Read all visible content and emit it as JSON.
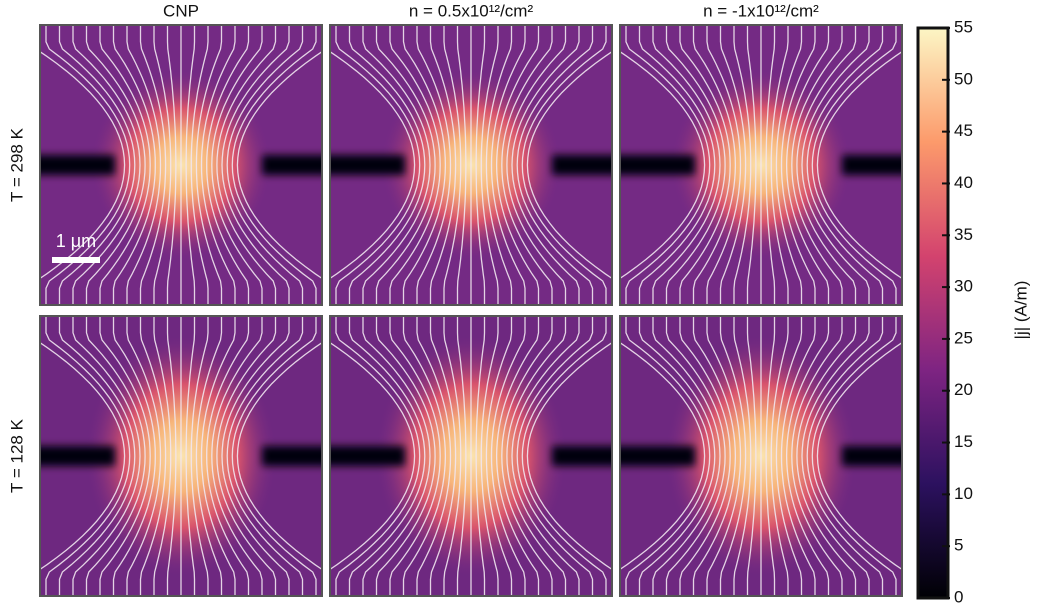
{
  "chart_data": {
    "type": "heatmap",
    "columns": [
      "CNP",
      "n = 0.5x10¹²/cm²",
      "n = -1x10¹²/cm²"
    ],
    "rows": [
      "T = 298 K",
      "T = 128 K"
    ],
    "scale_bar": "1 μm",
    "colorbar": {
      "label": "|j| (A/m)",
      "ylim": [
        0,
        55
      ],
      "yticks": [
        0,
        5,
        10,
        15,
        20,
        25,
        30,
        35,
        40,
        45,
        50,
        55
      ]
    }
  }
}
